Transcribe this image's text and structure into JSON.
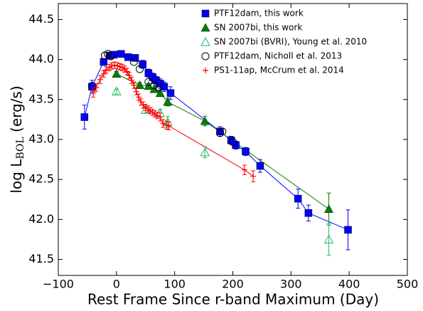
{
  "chart_data": {
    "type": "scatter",
    "xlabel": "Rest Frame Since r-band Maximum (Day)",
    "ylabel": [
      "log L",
      "BOL",
      " (erg/s)"
    ],
    "xlim": [
      -100,
      500
    ],
    "ylim": [
      41.3,
      44.7
    ],
    "xticks": [
      {
        "value": -100,
        "label": "−100"
      },
      0,
      100,
      200,
      300,
      400,
      500
    ],
    "yticks": [
      41.5,
      {
        "value": 42,
        "label": "42.0"
      },
      42.5,
      {
        "value": 43,
        "label": "43.0"
      },
      43.5,
      {
        "value": 44,
        "label": "44.0"
      },
      44.5
    ],
    "legend": "upper right",
    "series": [
      {
        "name": "PTF12dam, this work",
        "color": "#0000ff",
        "marker": "square",
        "line": true,
        "x": [
          -55,
          -42,
          -22,
          -12,
          -5,
          8,
          20,
          32,
          45,
          55,
          62,
          68,
          75,
          82,
          93,
          178,
          197,
          205,
          222,
          247,
          312,
          330,
          398
        ],
        "values": [
          43.28,
          43.66,
          43.97,
          44.05,
          44.06,
          44.07,
          44.03,
          44.02,
          43.94,
          43.83,
          43.78,
          43.74,
          43.7,
          43.66,
          43.58,
          43.1,
          42.99,
          42.93,
          42.85,
          42.67,
          42.26,
          42.08,
          41.87
        ],
        "errors": [
          0.15,
          0.08,
          0.04,
          0.03,
          0.03,
          0.03,
          0.03,
          0.03,
          0.05,
          0.05,
          0.05,
          0.05,
          0.06,
          0.06,
          0.08,
          0.06,
          0.05,
          0.05,
          0.05,
          0.08,
          0.12,
          0.1,
          0.25
        ]
      },
      {
        "name": "SN 2007bi, this work",
        "color": "#008000",
        "marker": "triangle",
        "line": true,
        "x": [
          0,
          40,
          55,
          65,
          75,
          88,
          152,
          365
        ],
        "values": [
          43.82,
          43.68,
          43.67,
          43.63,
          43.58,
          43.47,
          43.23,
          42.13
        ],
        "errors": [
          0.03,
          0.03,
          0.03,
          0.04,
          0.04,
          0.05,
          0.06,
          0.2
        ]
      },
      {
        "name": "SN 2007bi (BVRI), Young et al. 2010",
        "color": "#22bb66",
        "marker": "triangle-open",
        "line": false,
        "x": [
          0,
          50,
          75,
          88,
          152,
          365
        ],
        "values": [
          43.6,
          43.37,
          43.33,
          43.22,
          42.84,
          41.75
        ],
        "errors": [
          0.03,
          0.04,
          0.05,
          0.07,
          0.07,
          0.2
        ]
      },
      {
        "name": "PTF12dam, Nicholl et al. 2013",
        "color": "#000000",
        "marker": "circle-open",
        "line": false,
        "x": [
          -42,
          -20,
          -15,
          -10,
          30,
          40,
          55,
          65,
          73,
          178,
          182,
          200
        ],
        "values": [
          43.67,
          44.05,
          44.07,
          44.04,
          43.97,
          43.88,
          43.72,
          43.68,
          43.65,
          43.08,
          43.1,
          42.97
        ]
      },
      {
        "name": "PS1-11ap, McCrum et al. 2014",
        "color": "#ff0000",
        "marker": "plus",
        "line": true,
        "x": [
          -40,
          -35,
          -28,
          -22,
          -18,
          -12,
          -8,
          -3,
          2,
          6,
          10,
          14,
          18,
          22,
          26,
          30,
          34,
          38,
          42,
          46,
          50,
          54,
          58,
          62,
          66,
          70,
          75,
          80,
          86,
          90,
          220,
          235
        ],
        "values": [
          43.58,
          43.65,
          43.75,
          43.82,
          43.87,
          43.9,
          43.92,
          43.93,
          43.92,
          43.91,
          43.9,
          43.88,
          43.85,
          43.8,
          43.74,
          43.68,
          43.6,
          43.53,
          43.47,
          43.43,
          43.4,
          43.38,
          43.36,
          43.34,
          43.32,
          43.3,
          43.28,
          43.2,
          43.18,
          43.17,
          42.62,
          42.54
        ],
        "errors": [
          0.05,
          0.05,
          0.05,
          0.04,
          0.04,
          0.04,
          0.04,
          0.04,
          0.04,
          0.04,
          0.04,
          0.04,
          0.04,
          0.04,
          0.04,
          0.04,
          0.04,
          0.04,
          0.04,
          0.04,
          0.04,
          0.04,
          0.04,
          0.04,
          0.04,
          0.04,
          0.05,
          0.05,
          0.05,
          0.05,
          0.06,
          0.07
        ]
      }
    ]
  }
}
